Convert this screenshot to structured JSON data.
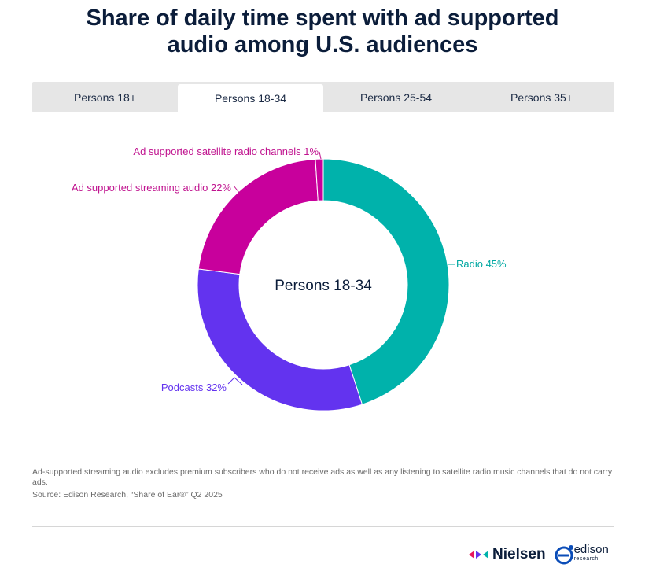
{
  "title_line1": "Share of daily time spent with ad supported",
  "title_line2": "audio among U.S. audiences",
  "tabs": [
    "Persons 18+",
    "Persons 18-34",
    "Persons 25-54",
    "Persons 35+"
  ],
  "active_tab": 1,
  "center_label": "Persons 18-34",
  "footnote": "Ad-supported streaming audio excludes premium subscribers who do not receive ads as well as any listening to satellite radio music channels that do not carry ads.",
  "source": "Source: Edison Research, “Share of Ear®” Q2 2025",
  "logos": {
    "nielsen": "Nielsen",
    "edison": "edison",
    "edison_sub": "research"
  },
  "chart_data": {
    "type": "pie",
    "donut": true,
    "categories": [
      "Radio",
      "Podcasts",
      "Ad supported streaming audio",
      "Ad supported satellite radio channels"
    ],
    "values": [
      45,
      32,
      22,
      1
    ],
    "labels": [
      "Radio 45%",
      "Podcasts 32%",
      "Ad supported streaming audio 22%",
      "Ad supported satellite radio channels 1%"
    ],
    "colors": [
      "#00b2ab",
      "#6333ef",
      "#c8009c",
      "#c8009c"
    ],
    "label_colors": [
      "#00a8a2",
      "#6333ef",
      "#c0148f",
      "#c0148f"
    ]
  }
}
